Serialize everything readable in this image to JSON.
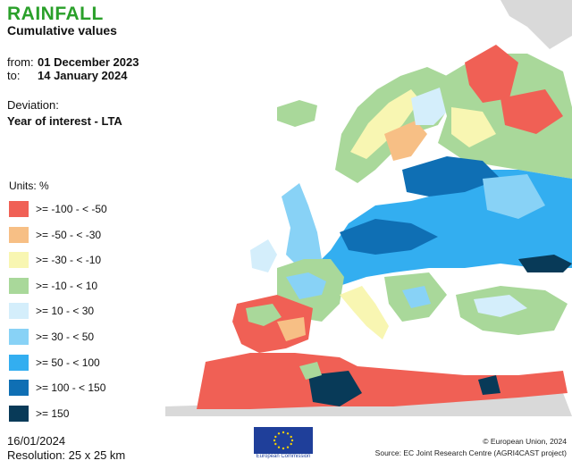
{
  "header": {
    "title": "RAINFALL",
    "subtitle": "Cumulative values"
  },
  "period": {
    "from_label": "from:",
    "from_value": "01 December 2023",
    "to_label": "to:",
    "to_value": "14 January 2024"
  },
  "deviation": {
    "label": "Deviation:",
    "value": "Year of interest - LTA"
  },
  "legend": {
    "units": "Units: %",
    "classes": [
      {
        "label": ">= -100 - < -50",
        "color": "#f06055"
      },
      {
        "label": ">= -50 - < -30",
        "color": "#f7bf85"
      },
      {
        "label": ">= -30 - < -10",
        "color": "#f8f6b2"
      },
      {
        "label": ">= -10 - < 10",
        "color": "#a9d89a"
      },
      {
        "label": ">= 10 - < 30",
        "color": "#d4eefb"
      },
      {
        "label": ">= 30 - < 50",
        "color": "#88d2f6"
      },
      {
        "label": ">= 50 - < 100",
        "color": "#33aef0"
      },
      {
        "label": ">= 100 - < 150",
        "color": "#0f6fb4"
      },
      {
        "label": ">= 150",
        "color": "#083a58"
      }
    ]
  },
  "footer": {
    "date": "16/01/2024",
    "resolution": "Resolution: 25 x 25 km",
    "copyright": "© European Union, 2024",
    "source": "Source: EC Joint Research Centre (AGRI4CAST project)",
    "logo_text": "European Commission"
  },
  "colors": {
    "title": "#2aa02a",
    "no_data": "#d9d9d9"
  }
}
